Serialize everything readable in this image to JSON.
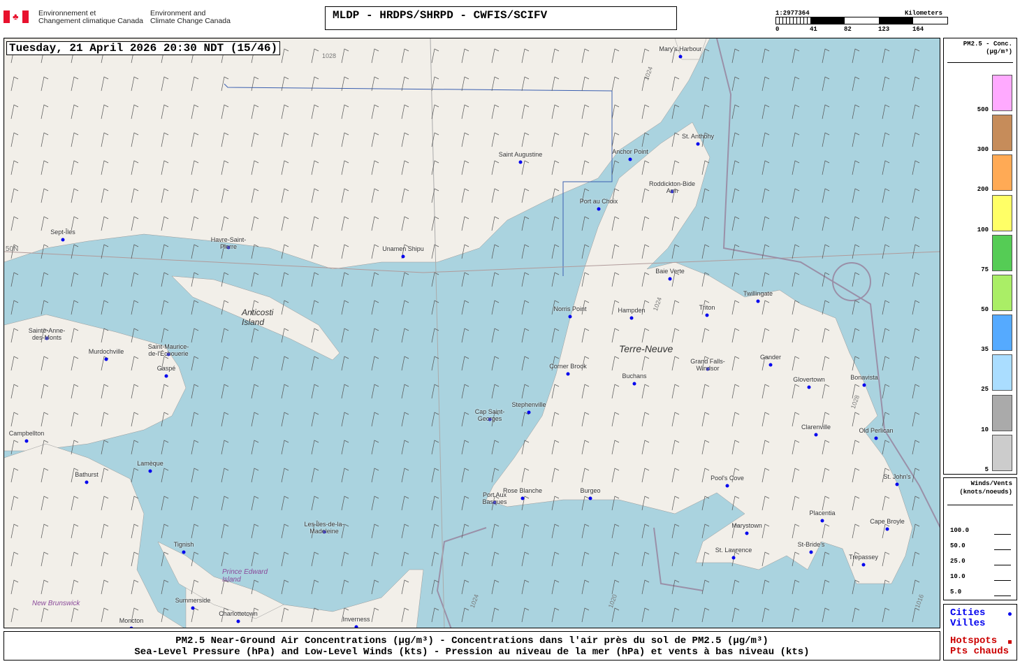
{
  "header": {
    "logo_fr": [
      "Environnement et",
      "Changement climatique Canada"
    ],
    "logo_en": [
      "Environment and",
      "Climate Change Canada"
    ],
    "title": "MLDP - HRDPS/SHRPD - CWFIS/SCIFV"
  },
  "scale": {
    "ratio": "1:2977364",
    "unit": "Kilometers",
    "ticks": [
      "0",
      "41",
      "82",
      "123",
      "164"
    ]
  },
  "map": {
    "datetime": "Tuesday, 21 April 2026 20:30 NDT (15/46)",
    "cities": [
      "Sept-Îles",
      "Havre-Saint-Pierre",
      "Unamen Shipu",
      "Saint Augustine",
      "Anchor Point",
      "St. Anthony",
      "Roddickton-Bide Arm",
      "Port au Choix",
      "Mary's Harbour",
      "Baie Verte",
      "Twillingate",
      "Norris Point",
      "Hampden",
      "Triton",
      "Corner Brook",
      "Grand Falls-Windsor",
      "Gander",
      "Buchans",
      "Glovertown",
      "Bonavista",
      "Stephenville",
      "Cap Saint-Georges",
      "Clarenville",
      "Old Perlican",
      "Port Aux Basques",
      "Rose Blanche",
      "Burgeo",
      "Pool's Cove",
      "St. John's",
      "Marystown",
      "Placentia",
      "Cape Broyle",
      "St. Lawrence",
      "St-Bride's",
      "Trepassey",
      "Sainte-Anne-des-Monts",
      "Murdochville",
      "Saint-Maurice-de-l'Échouerie",
      "Gaspé",
      "Campbellton",
      "Bathurst",
      "Lamèque",
      "Tignish",
      "Les Îles-de-la-Madeleine",
      "Summerside",
      "Charlottetown",
      "Inverness",
      "Moncton"
    ],
    "regions": [
      "Anticosti Island",
      "Terre-Neuve",
      "Prince Edward Island",
      "New Brunswick"
    ],
    "isobars": [
      "1028",
      "1024",
      "1024",
      "1028",
      "1024",
      "1020",
      "1016"
    ],
    "latitude": "50N",
    "colors": {
      "sea": "#aad3df",
      "land": "#f2efe9",
      "city_dot": "#0000ee"
    }
  },
  "legend": {
    "title": "PM2.5 - Conc.",
    "unit": "(µg/m³)",
    "levels": [
      {
        "v": "500",
        "c": "#ffaaff"
      },
      {
        "v": "300",
        "c": "#c68c5a"
      },
      {
        "v": "200",
        "c": "#ffaa55"
      },
      {
        "v": "100",
        "c": "#ffff66"
      },
      {
        "v": "75",
        "c": "#55cc55"
      },
      {
        "v": "50",
        "c": "#aaee66"
      },
      {
        "v": "35",
        "c": "#55aaff"
      },
      {
        "v": "25",
        "c": "#aaddff"
      },
      {
        "v": "10",
        "c": "#aaaaaa"
      },
      {
        "v": "5",
        "c": "#cccccc"
      }
    ]
  },
  "winds": {
    "title": "Winds/Vents",
    "unit": "(knots/noeuds)",
    "levels": [
      "100.0",
      "50.0",
      "25.0",
      "10.0",
      "5.0"
    ]
  },
  "points": {
    "cities_en": "Cities",
    "cities_fr": "Villes",
    "hotspots_en": "Hotspots",
    "hotspots_fr": "Pts chauds",
    "cities_color": "#0000ee",
    "hotspots_color": "#cc0000"
  },
  "caption": {
    "line1": "PM2.5 Near-Ground Air Concentrations (µg/m³) - Concentrations dans l'air près du sol de PM2.5 (µg/m³)",
    "line2": "Sea-Level Pressure (hPa) and Low-Level Winds (kts) - Pression au niveau de la mer (hPa) et vents à bas niveau (kts)"
  }
}
